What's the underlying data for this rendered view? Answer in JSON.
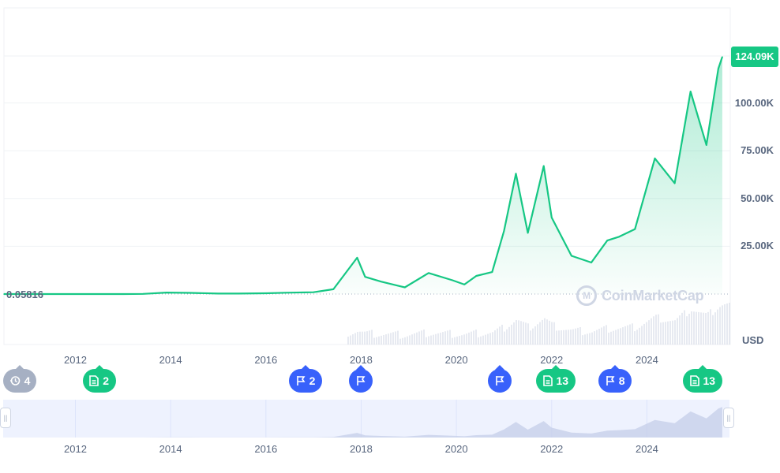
{
  "chart_data": {
    "type": "area",
    "x": [
      "2010-07",
      "2011-01",
      "2011-06",
      "2012-01",
      "2012-06",
      "2013-01",
      "2013-06",
      "2013-12",
      "2014-06",
      "2015-01",
      "2015-06",
      "2016-01",
      "2016-06",
      "2017-01",
      "2017-06",
      "2017-12",
      "2018-02",
      "2018-06",
      "2018-12",
      "2019-06",
      "2019-12",
      "2020-03",
      "2020-06",
      "2020-10",
      "2021-01",
      "2021-04",
      "2021-07",
      "2021-11",
      "2022-01",
      "2022-06",
      "2022-11",
      "2023-03",
      "2023-06",
      "2023-10",
      "2024-03",
      "2024-08",
      "2024-12",
      "2025-04",
      "2025-07",
      "2025-08"
    ],
    "y": [
      0.05816,
      0.3,
      15,
      6,
      6,
      13,
      100,
      800,
      600,
      250,
      250,
      430,
      700,
      950,
      2500,
      19000,
      9000,
      6500,
      3500,
      11000,
      7200,
      5000,
      9500,
      11500,
      33000,
      63000,
      32000,
      67000,
      40000,
      20000,
      16500,
      28000,
      30000,
      34000,
      71000,
      58000,
      106000,
      78000,
      118000,
      124090
    ],
    "volume_shown": true,
    "title": "",
    "xlabel": "",
    "ylabel": "",
    "ylim": [
      0,
      125000
    ],
    "xlim": [
      "2010-07",
      "2025-10"
    ],
    "x_ticks": [
      "2012",
      "2014",
      "2016",
      "2018",
      "2020",
      "2022",
      "2024"
    ],
    "y_ticks": [
      "25.00K",
      "50.00K",
      "75.00K",
      "100.00K"
    ],
    "current_price_label": "124.09K",
    "baseline_label": "0.05816",
    "currency_label": "USD",
    "grid": true,
    "line_color": "#16c784",
    "fill_color": "#16c784",
    "volume_color": "#cfd6e4"
  },
  "watermark": {
    "text": "CoinMarketCap",
    "icon": "coinmarketcap-logo-icon"
  },
  "events": [
    {
      "id": "history",
      "icon": "history-icon",
      "count": "4",
      "color": "#a6b0c3",
      "date": "2010-09"
    },
    {
      "id": "news-2012",
      "icon": "document-icon",
      "count": "2",
      "color": "#16c784",
      "date": "2012-07"
    },
    {
      "id": "flag-2016",
      "icon": "flag-icon",
      "count": "2",
      "color": "#3861fb",
      "date": "2016-11"
    },
    {
      "id": "flag-2018",
      "icon": "flag-icon",
      "count": "",
      "color": "#3861fb",
      "date": "2018-01"
    },
    {
      "id": "flag-2020",
      "icon": "flag-icon",
      "count": "",
      "color": "#3861fb",
      "date": "2020-12"
    },
    {
      "id": "news-2022",
      "icon": "document-icon",
      "count": "13",
      "color": "#16c784",
      "date": "2022-02"
    },
    {
      "id": "flag-2023",
      "icon": "flag-icon",
      "count": "8",
      "color": "#3861fb",
      "date": "2023-05"
    },
    {
      "id": "news-2025",
      "icon": "document-icon",
      "count": "13",
      "color": "#16c784",
      "date": "2025-03"
    }
  ],
  "navigator": {
    "x_ticks": [
      "2012",
      "2014",
      "2016",
      "2018",
      "2020",
      "2022",
      "2024"
    ]
  }
}
